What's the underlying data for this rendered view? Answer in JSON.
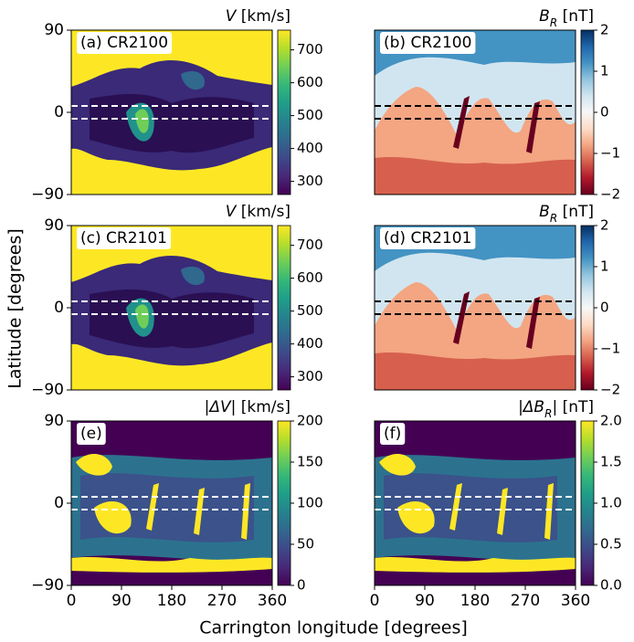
{
  "figure": {
    "xlabel": "Carrington longitude [degrees]",
    "ylabel": "Latitude [degrees]"
  },
  "chart_data": [
    {
      "type": "heatmap",
      "panel_label": "(a) CR2100",
      "colormap": "viridis",
      "cbar_label": [
        {
          "text": "V",
          "style": "italic"
        },
        {
          "text": " [km/s]"
        }
      ],
      "clim": [
        260,
        760
      ],
      "cticks": [
        300,
        400,
        500,
        600,
        700
      ],
      "xlim": [
        0,
        360
      ],
      "ylim": [
        -90,
        90
      ],
      "yticks": [
        {
          "value": -90,
          "label": "−90"
        },
        0,
        90
      ],
      "reference_lines": [
        -7,
        7
      ],
      "reference_line_color": "#ffffff"
    },
    {
      "type": "heatmap",
      "panel_label": "(b) CR2100",
      "colormap": "RdBu",
      "cbar_label": [
        {
          "text": "B",
          "style": "italic"
        },
        {
          "text": "R",
          "style": "sub"
        },
        {
          "text": " [nT]"
        }
      ],
      "clim": [
        -2,
        2
      ],
      "cticks": [
        {
          "value": -2,
          "label": "−2"
        },
        {
          "value": -1,
          "label": "−1"
        },
        0,
        1,
        2
      ],
      "xlim": [
        0,
        360
      ],
      "ylim": [
        -90,
        90
      ],
      "reference_lines": [
        -7,
        7
      ],
      "reference_line_color": "#000000"
    },
    {
      "type": "heatmap",
      "panel_label": "(c) CR2101",
      "colormap": "viridis",
      "cbar_label": [
        {
          "text": "V",
          "style": "italic"
        },
        {
          "text": " [km/s]"
        }
      ],
      "clim": [
        260,
        760
      ],
      "cticks": [
        300,
        400,
        500,
        600,
        700
      ],
      "xlim": [
        0,
        360
      ],
      "ylim": [
        -90,
        90
      ],
      "yticks": [
        {
          "value": -90,
          "label": "−90"
        },
        0,
        90
      ],
      "reference_lines": [
        -7,
        7
      ],
      "reference_line_color": "#ffffff"
    },
    {
      "type": "heatmap",
      "panel_label": "(d) CR2101",
      "colormap": "RdBu",
      "cbar_label": [
        {
          "text": "B",
          "style": "italic"
        },
        {
          "text": "R",
          "style": "sub"
        },
        {
          "text": " [nT]"
        }
      ],
      "clim": [
        -2,
        2
      ],
      "cticks": [
        {
          "value": -2,
          "label": "−2"
        },
        {
          "value": -1,
          "label": "−1"
        },
        0,
        1,
        2
      ],
      "xlim": [
        0,
        360
      ],
      "ylim": [
        -90,
        90
      ],
      "reference_lines": [
        -7,
        7
      ],
      "reference_line_color": "#000000"
    },
    {
      "type": "heatmap",
      "panel_label": "(e)",
      "colormap": "viridis",
      "cbar_label": [
        {
          "text": "|ΔV|",
          "style": "italic"
        },
        {
          "text": " [km/s]"
        }
      ],
      "clim": [
        0,
        200
      ],
      "cticks": [
        0,
        50,
        100,
        150,
        200
      ],
      "xlim": [
        0,
        360
      ],
      "ylim": [
        -90,
        90
      ],
      "xticks": [
        0,
        90,
        180,
        270,
        360
      ],
      "yticks": [
        {
          "value": -90,
          "label": "−90"
        },
        0,
        90
      ],
      "reference_lines": [
        -7,
        7
      ],
      "reference_line_color": "#ffffff"
    },
    {
      "type": "heatmap",
      "panel_label": "(f)",
      "colormap": "viridis",
      "cbar_label": [
        {
          "text": "|ΔB",
          "style": "italic"
        },
        {
          "text": "R",
          "style": "sub"
        },
        {
          "text": "| [nT]"
        }
      ],
      "clim": [
        0,
        2
      ],
      "cticks": [
        {
          "value": 0,
          "label": "0.0"
        },
        0.5,
        {
          "value": 1,
          "label": "1.0"
        },
        1.5,
        {
          "value": 2,
          "label": "2.0"
        }
      ],
      "xlim": [
        0,
        360
      ],
      "ylim": [
        -90,
        90
      ],
      "xticks": [
        0,
        90,
        180,
        270,
        360
      ],
      "reference_lines": [
        -7,
        7
      ],
      "reference_line_color": "#ffffff"
    }
  ]
}
